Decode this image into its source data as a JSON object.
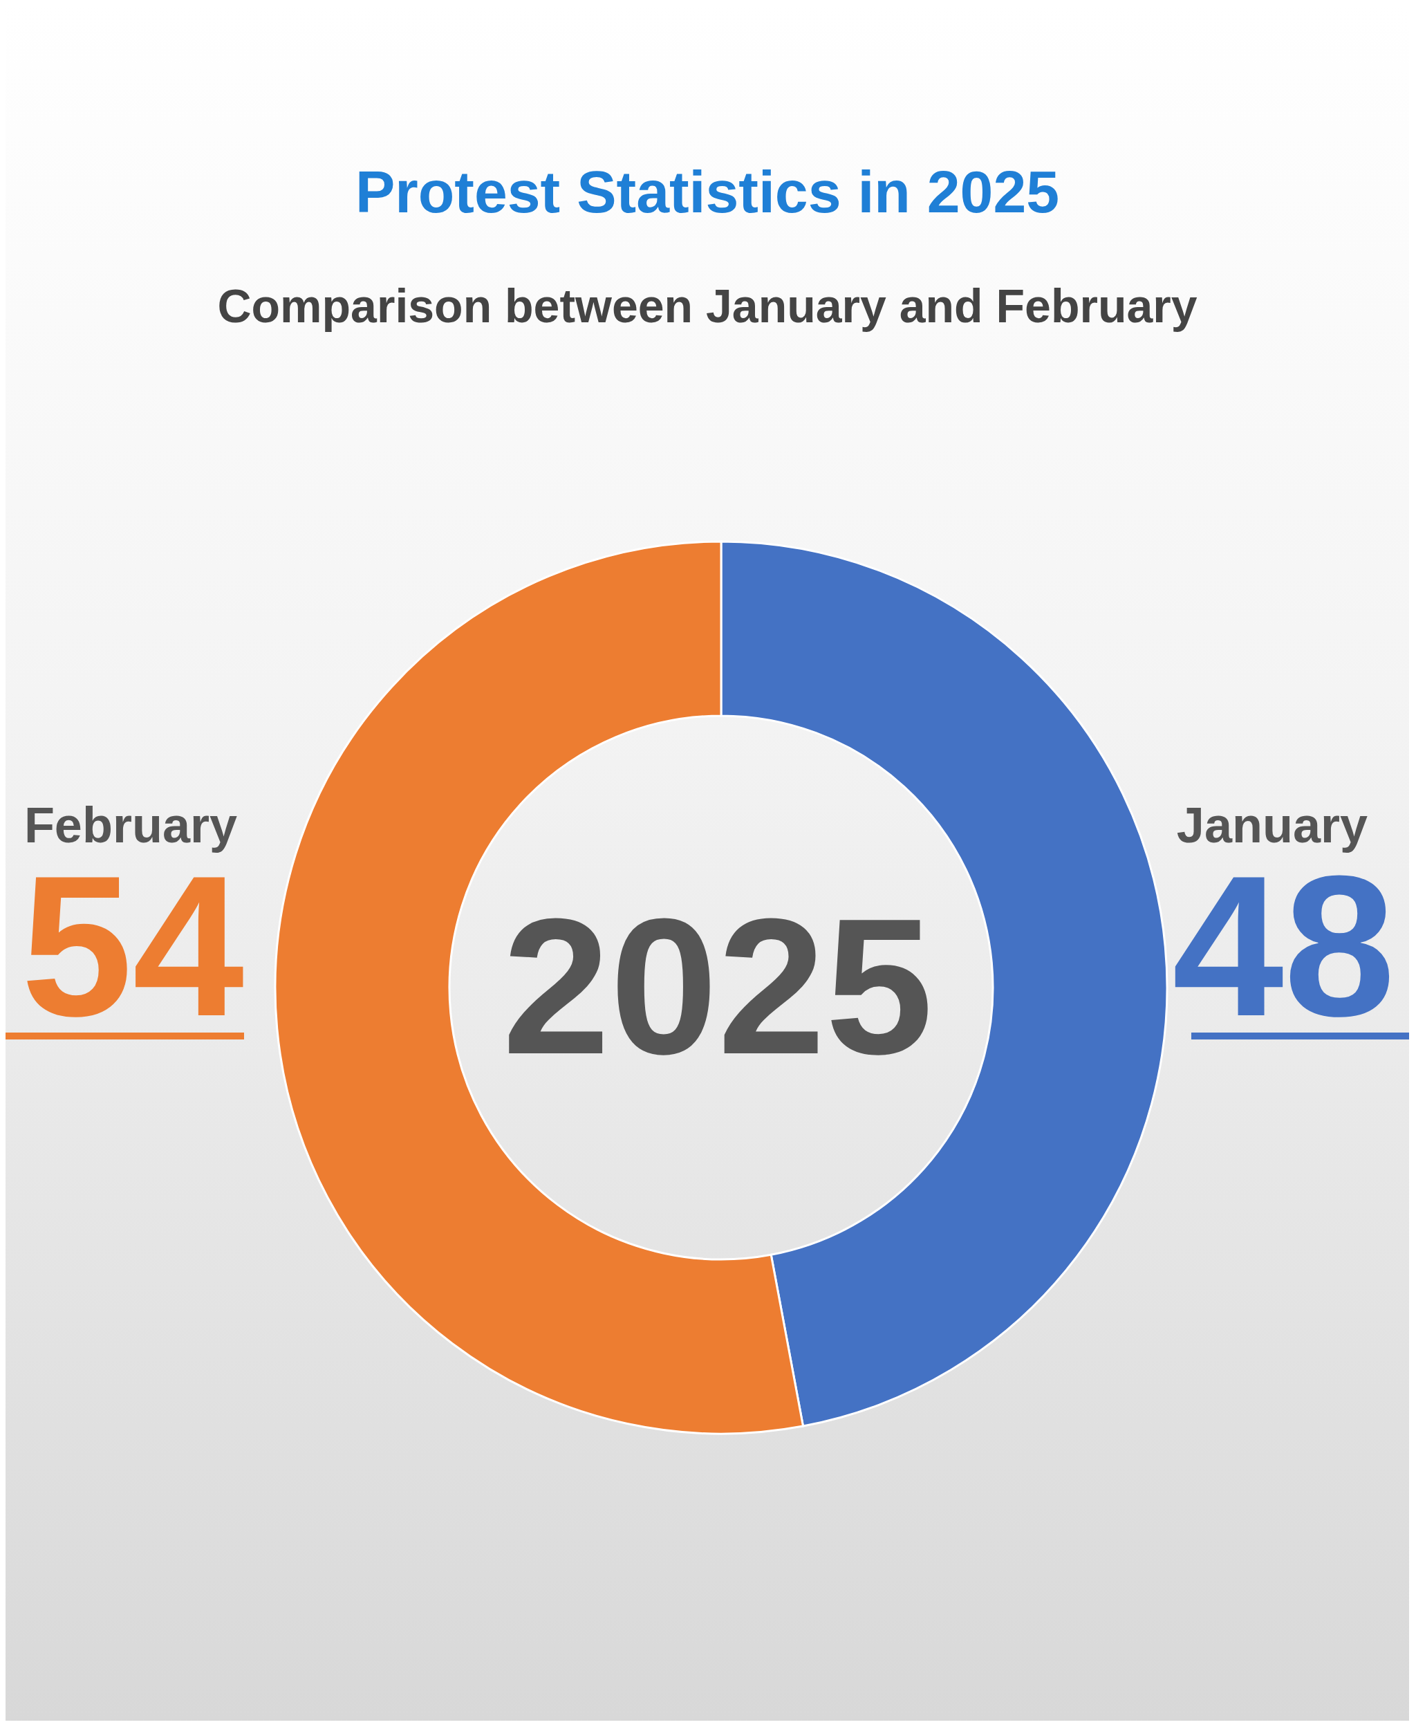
{
  "chart_data": {
    "type": "donut",
    "title": "Protest Statistics in 2025",
    "subtitle": "Comparison between January and February",
    "categories": [
      "January",
      "February"
    ],
    "values": [
      48,
      54
    ],
    "colors": [
      "#4472c4",
      "#ed7d31"
    ],
    "data_labels": true,
    "annotations": [
      "2025"
    ]
  }
}
